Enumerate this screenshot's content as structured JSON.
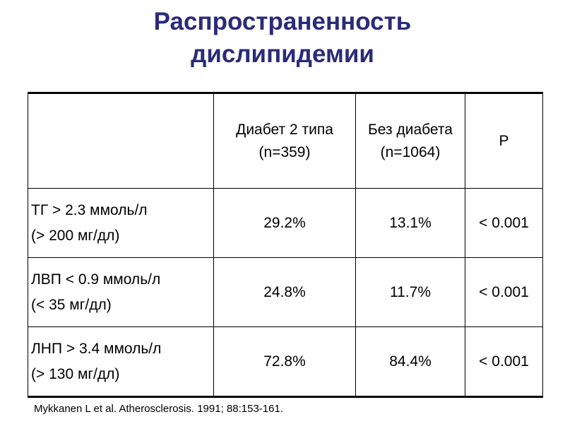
{
  "title": {
    "line1": "Распространенность",
    "line2": "дислипидемии"
  },
  "table": {
    "columns": [
      {
        "line1": "Диабет 2 типа",
        "line2": "(n=359)"
      },
      {
        "line1": "Без диабета",
        "line2": "(n=1064)"
      },
      {
        "line1": "P",
        "line2": ""
      }
    ],
    "rows": [
      {
        "label_line1": "ТГ > 2.3 ммоль/л",
        "label_line2": "(> 200 мг/дл)",
        "diabetes": "29.2%",
        "no_diabetes": "13.1%",
        "p": "< 0.001"
      },
      {
        "label_line1": "ЛВП < 0.9 ммоль/л",
        "label_line2": "(< 35 мг/дл)",
        "diabetes": "24.8%",
        "no_diabetes": "11.7%",
        "p": "< 0.001"
      },
      {
        "label_line1": "ЛНП > 3.4 ммоль/л",
        "label_line2": "(> 130 мг/дл)",
        "diabetes": "72.8%",
        "no_diabetes": "84.4%",
        "p": "< 0.001"
      }
    ]
  },
  "citation": "Mykkanen L et al.  Atherosclerosis.  1991; 88:153-161."
}
